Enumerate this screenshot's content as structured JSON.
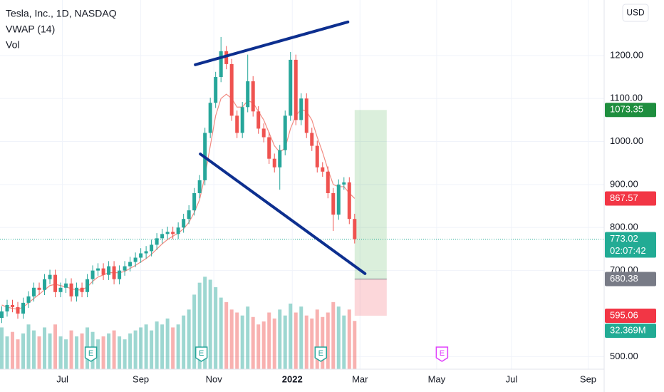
{
  "header": {
    "title": "Tesla, Inc., 1D, NASDAQ",
    "indicators": [
      "VWAP (14)",
      "Vol"
    ],
    "currency": "USD"
  },
  "chart_data": {
    "type": "candlestick",
    "x": [
      1,
      4,
      7,
      10,
      13,
      16,
      19,
      22,
      25,
      28,
      31,
      34,
      37,
      40,
      43,
      46,
      49,
      52,
      55,
      58,
      61,
      64,
      67,
      70,
      73,
      76,
      79,
      82,
      85,
      88,
      91,
      94,
      97,
      100,
      103,
      106,
      109,
      112,
      115,
      118,
      121,
      124,
      127,
      130,
      133,
      136,
      139,
      142,
      145,
      148,
      151,
      154,
      157,
      160,
      163,
      166,
      169,
      172,
      175,
      178,
      181,
      184,
      187,
      190,
      193,
      196,
      199
    ],
    "open": [
      590,
      605,
      620,
      615,
      600,
      625,
      640,
      660,
      655,
      680,
      690,
      650,
      660,
      670,
      640,
      660,
      650,
      680,
      700,
      705,
      690,
      710,
      680,
      700,
      710,
      720,
      730,
      740,
      745,
      760,
      775,
      785,
      790,
      785,
      800,
      820,
      840,
      880,
      910,
      1020,
      1090,
      1150,
      1210,
      1180,
      1060,
      1020,
      1080,
      1140,
      1070,
      1030,
      1010,
      960,
      940,
      980,
      1060,
      1190,
      1050,
      1100,
      1020,
      990,
      940,
      930,
      880,
      830,
      900,
      905,
      820
    ],
    "high": [
      617,
      632,
      632,
      627,
      637,
      652,
      672,
      672,
      692,
      702,
      702,
      672,
      682,
      682,
      672,
      672,
      692,
      712,
      717,
      717,
      722,
      722,
      712,
      722,
      732,
      742,
      752,
      757,
      772,
      787,
      797,
      802,
      802,
      812,
      832,
      852,
      892,
      922,
      1032,
      1102,
      1162,
      1243,
      1222,
      1192,
      1072,
      1092,
      1202,
      1152,
      1082,
      1042,
      1022,
      972,
      992,
      1072,
      1208,
      1202,
      1112,
      1112,
      1032,
      1002,
      952,
      942,
      892,
      912,
      917,
      917,
      832
    ],
    "low": [
      578,
      593,
      603,
      588,
      588,
      613,
      628,
      643,
      643,
      668,
      638,
      638,
      648,
      628,
      628,
      638,
      638,
      668,
      688,
      678,
      678,
      668,
      668,
      688,
      698,
      708,
      718,
      728,
      733,
      748,
      763,
      773,
      773,
      773,
      788,
      808,
      828,
      868,
      898,
      1008,
      1078,
      1138,
      1168,
      1048,
      1008,
      1008,
      1068,
      1058,
      1018,
      998,
      948,
      928,
      888,
      968,
      1048,
      1038,
      1038,
      1008,
      978,
      928,
      918,
      868,
      792,
      818,
      888,
      808,
      763
    ],
    "close": [
      605,
      620,
      615,
      600,
      625,
      640,
      660,
      655,
      680,
      690,
      650,
      660,
      670,
      640,
      660,
      650,
      680,
      700,
      705,
      690,
      710,
      680,
      700,
      710,
      720,
      730,
      740,
      745,
      760,
      775,
      785,
      790,
      785,
      800,
      820,
      840,
      880,
      910,
      1020,
      1090,
      1150,
      1210,
      1180,
      1060,
      1020,
      1080,
      1140,
      1070,
      1030,
      1010,
      960,
      940,
      980,
      1060,
      1190,
      1050,
      1100,
      1020,
      990,
      940,
      930,
      880,
      830,
      900,
      905,
      820,
      773.02
    ],
    "up_color": "#26a69a",
    "down_color": "#ef5350",
    "vwap": {
      "color": "#f28b82",
      "values": [
        620,
        615,
        612,
        610,
        615,
        625,
        635,
        645,
        655,
        665,
        668,
        665,
        662,
        658,
        655,
        655,
        662,
        675,
        685,
        690,
        695,
        695,
        695,
        698,
        705,
        712,
        720,
        728,
        738,
        750,
        762,
        772,
        780,
        787,
        797,
        812,
        835,
        865,
        920,
        990,
        1060,
        1100,
        1110,
        1100,
        1080,
        1080,
        1095,
        1090,
        1070,
        1050,
        1020,
        990,
        975,
        985,
        1030,
        1060,
        1075,
        1070,
        1050,
        1010,
        975,
        935,
        900,
        895,
        895,
        880,
        867.57
      ],
      "label_color": "#f23645"
    },
    "volume": {
      "values": [
        28,
        22,
        25,
        20,
        24,
        30,
        26,
        22,
        28,
        24,
        30,
        22,
        20,
        26,
        22,
        24,
        28,
        25,
        20,
        22,
        24,
        26,
        22,
        20,
        24,
        26,
        28,
        30,
        26,
        32,
        30,
        34,
        28,
        30,
        36,
        40,
        50,
        58,
        62,
        60,
        55,
        48,
        45,
        40,
        38,
        36,
        42,
        35,
        30,
        32,
        38,
        34,
        40,
        36,
        44,
        38,
        42,
        36,
        34,
        40,
        35,
        38,
        45,
        42,
        36,
        40,
        32.369
      ],
      "ylim": [
        0,
        65
      ],
      "last_value_label": "32.369M",
      "label_color": "#22ab94"
    },
    "xlim": [
      0,
      339
    ],
    "xticks": [
      {
        "value": 35,
        "label": "Jul"
      },
      {
        "value": 79,
        "label": "Sep"
      },
      {
        "value": 120,
        "label": "Nov"
      },
      {
        "value": 164,
        "label": "2022"
      },
      {
        "value": 202,
        "label": "Mar"
      },
      {
        "value": 245,
        "label": "May"
      },
      {
        "value": 287,
        "label": "Jul"
      },
      {
        "value": 330,
        "label": "Sep"
      }
    ],
    "ylim": [
      470.7,
      1329
    ],
    "yticks": [
      {
        "value": 500,
        "label": "500.00"
      },
      {
        "value": 700,
        "label": "700.00"
      },
      {
        "value": 800,
        "label": "800.00"
      },
      {
        "value": 900,
        "label": "900.00"
      },
      {
        "value": 1000,
        "label": "1000.00"
      },
      {
        "value": 1100,
        "label": "1100.00"
      },
      {
        "value": 1200,
        "label": "1200.00"
      }
    ],
    "grid": true,
    "last_price": {
      "color": "#22ab94",
      "countdown": "02:07:42"
    },
    "position": {
      "x": [
        199,
        217
      ],
      "target": 1073.35,
      "entry": 680.38,
      "stop": 595.06,
      "target_color": "#1e8e3e",
      "entry_color": "#787b86",
      "stop_color": "#f23645"
    },
    "trendlines": [
      {
        "x": [
          109.6,
          195.2
        ],
        "y": [
          1178.5,
          1278
        ],
        "color": "#0d2f8f"
      },
      {
        "x": [
          112.4,
          204.8
        ],
        "y": [
          971,
          693
        ],
        "color": "#0d2f8f"
      }
    ],
    "earnings": [
      {
        "x": 51,
        "label": "E",
        "color": "#26a69a"
      },
      {
        "x": 113,
        "label": "E",
        "color": "#26a69a"
      },
      {
        "x": 180,
        "label": "E",
        "color": "#26a69a"
      },
      {
        "x": 248,
        "label": "E",
        "color": "#e040fb"
      }
    ]
  }
}
